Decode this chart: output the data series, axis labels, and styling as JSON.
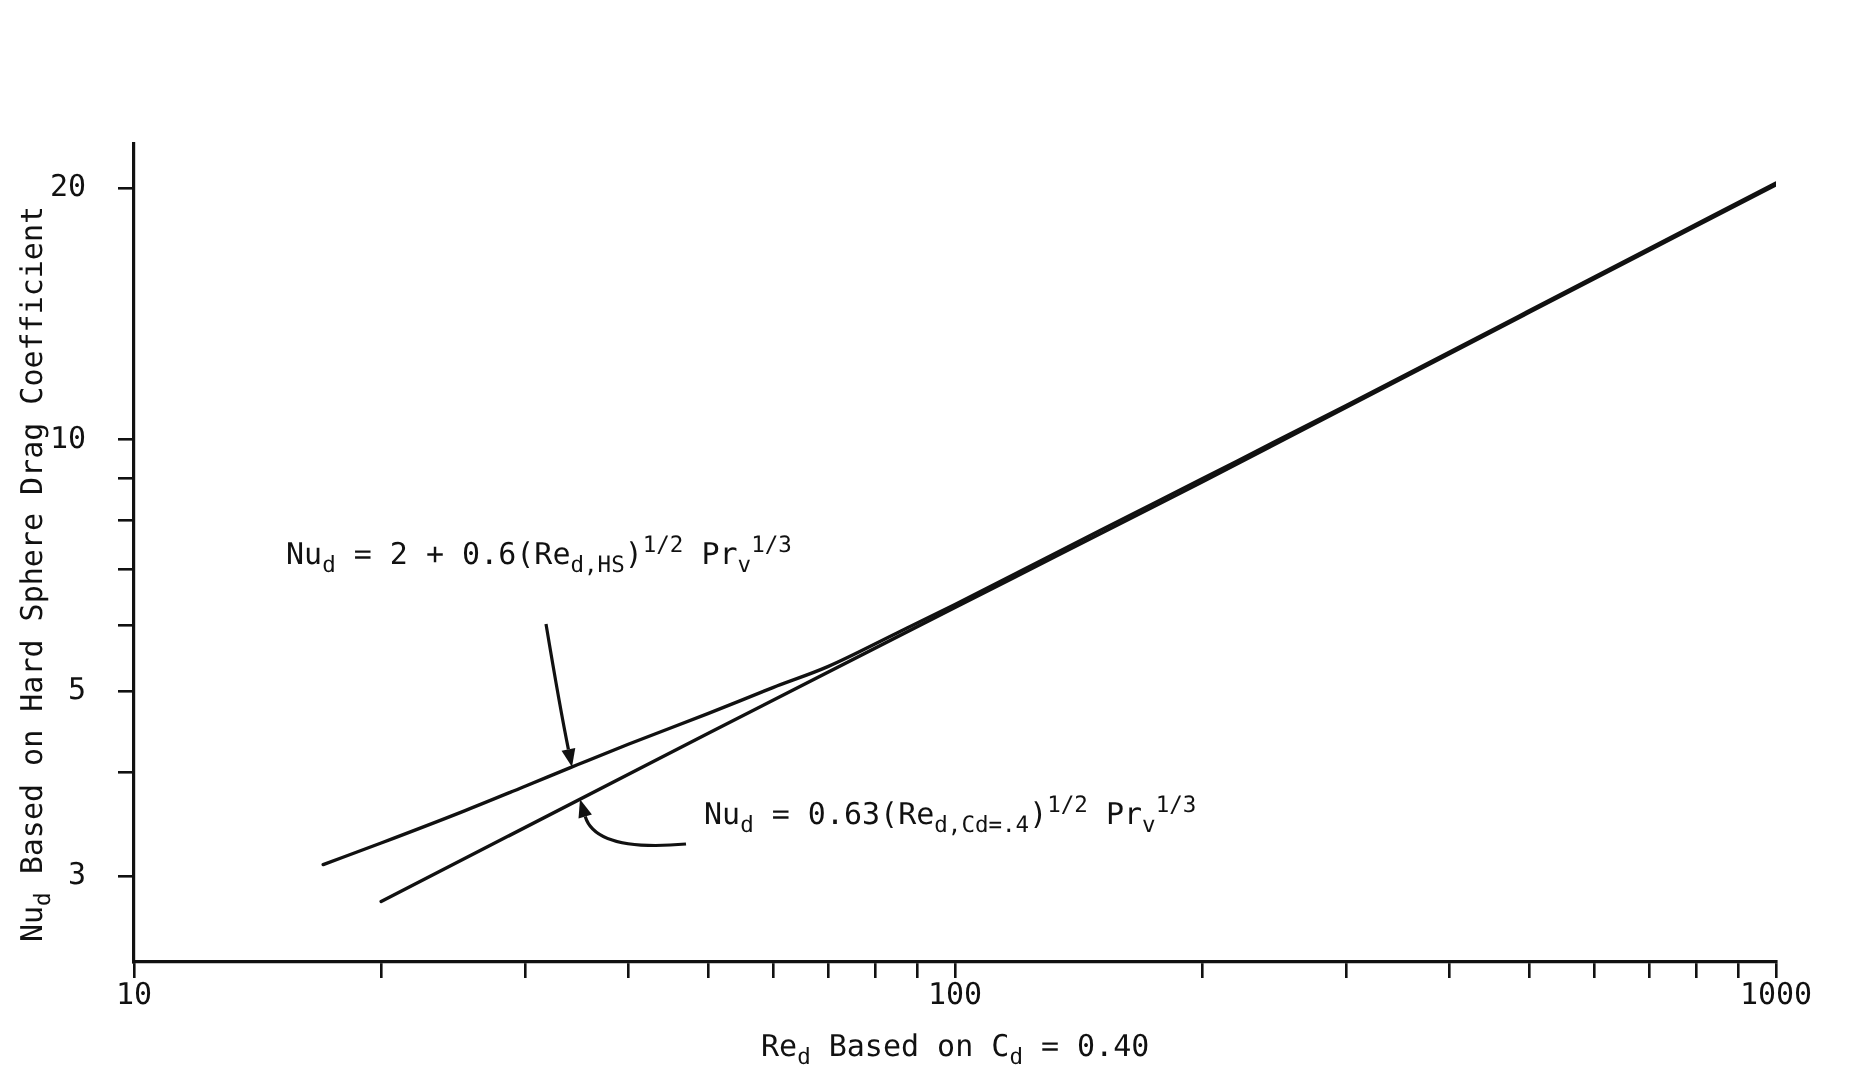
{
  "chart_data": {
    "type": "line",
    "xlabel": "Re$_{d}$ Based on C$_{d}$ = 0.40",
    "ylabel": "Nu$_{d}$ Based on Hard Sphere Drag Coefficient",
    "log": "xy",
    "xlim": [
      10,
      1000
    ],
    "ylim": [
      2.37,
      22.6
    ],
    "xticks": [
      10,
      {
        "value": 20,
        "label": null
      },
      {
        "value": 30,
        "label": null
      },
      {
        "value": 40,
        "label": null
      },
      {
        "value": 50,
        "label": null
      },
      {
        "value": 60,
        "label": null
      },
      {
        "value": 70,
        "label": null
      },
      {
        "value": 80,
        "label": null
      },
      {
        "value": 90,
        "label": null
      },
      100,
      {
        "value": 200,
        "label": null
      },
      {
        "value": 300,
        "label": null
      },
      {
        "value": 400,
        "label": null
      },
      {
        "value": 500,
        "label": null
      },
      {
        "value": 600,
        "label": null
      },
      {
        "value": 700,
        "label": null
      },
      {
        "value": 800,
        "label": null
      },
      {
        "value": 900,
        "label": null
      },
      1000
    ],
    "yticks": [
      3,
      {
        "value": 4,
        "label": null
      },
      5,
      {
        "value": 6,
        "label": null
      },
      {
        "value": 7,
        "label": null
      },
      {
        "value": 8,
        "label": null
      },
      {
        "value": 9,
        "label": null
      },
      10,
      20
    ],
    "series": [
      {
        "color": "#111111",
        "x": [
          17,
          20,
          25,
          30,
          34,
          40,
          50,
          60,
          70,
          85,
          100,
          150,
          200,
          300,
          600,
          1000
        ],
        "values": [
          3.1,
          3.29,
          3.58,
          3.85,
          4.05,
          4.32,
          4.7,
          5.05,
          5.35,
          5.87,
          6.35,
          7.78,
          8.98,
          11.0,
          15.65,
          20.3
        ]
      },
      {
        "color": "#111111",
        "x": [
          20,
          50,
          100,
          200,
          500,
          1000
        ],
        "values": [
          2.8,
          4.45,
          6.3,
          8.9,
          14.2,
          20.2
        ]
      }
    ],
    "annotations": [
      "Nu$_{d}$ = 2 + 0.6(Re$_{d,HS}$)$^{1/2}$ Pr$_{v}$$^{1/3}$",
      "Nu$_{d}$ = 0.63(Re$_{d,Cd=.4}$)$^{1/2}$ Pr$_{v}$$^{1/3}$"
    ]
  }
}
